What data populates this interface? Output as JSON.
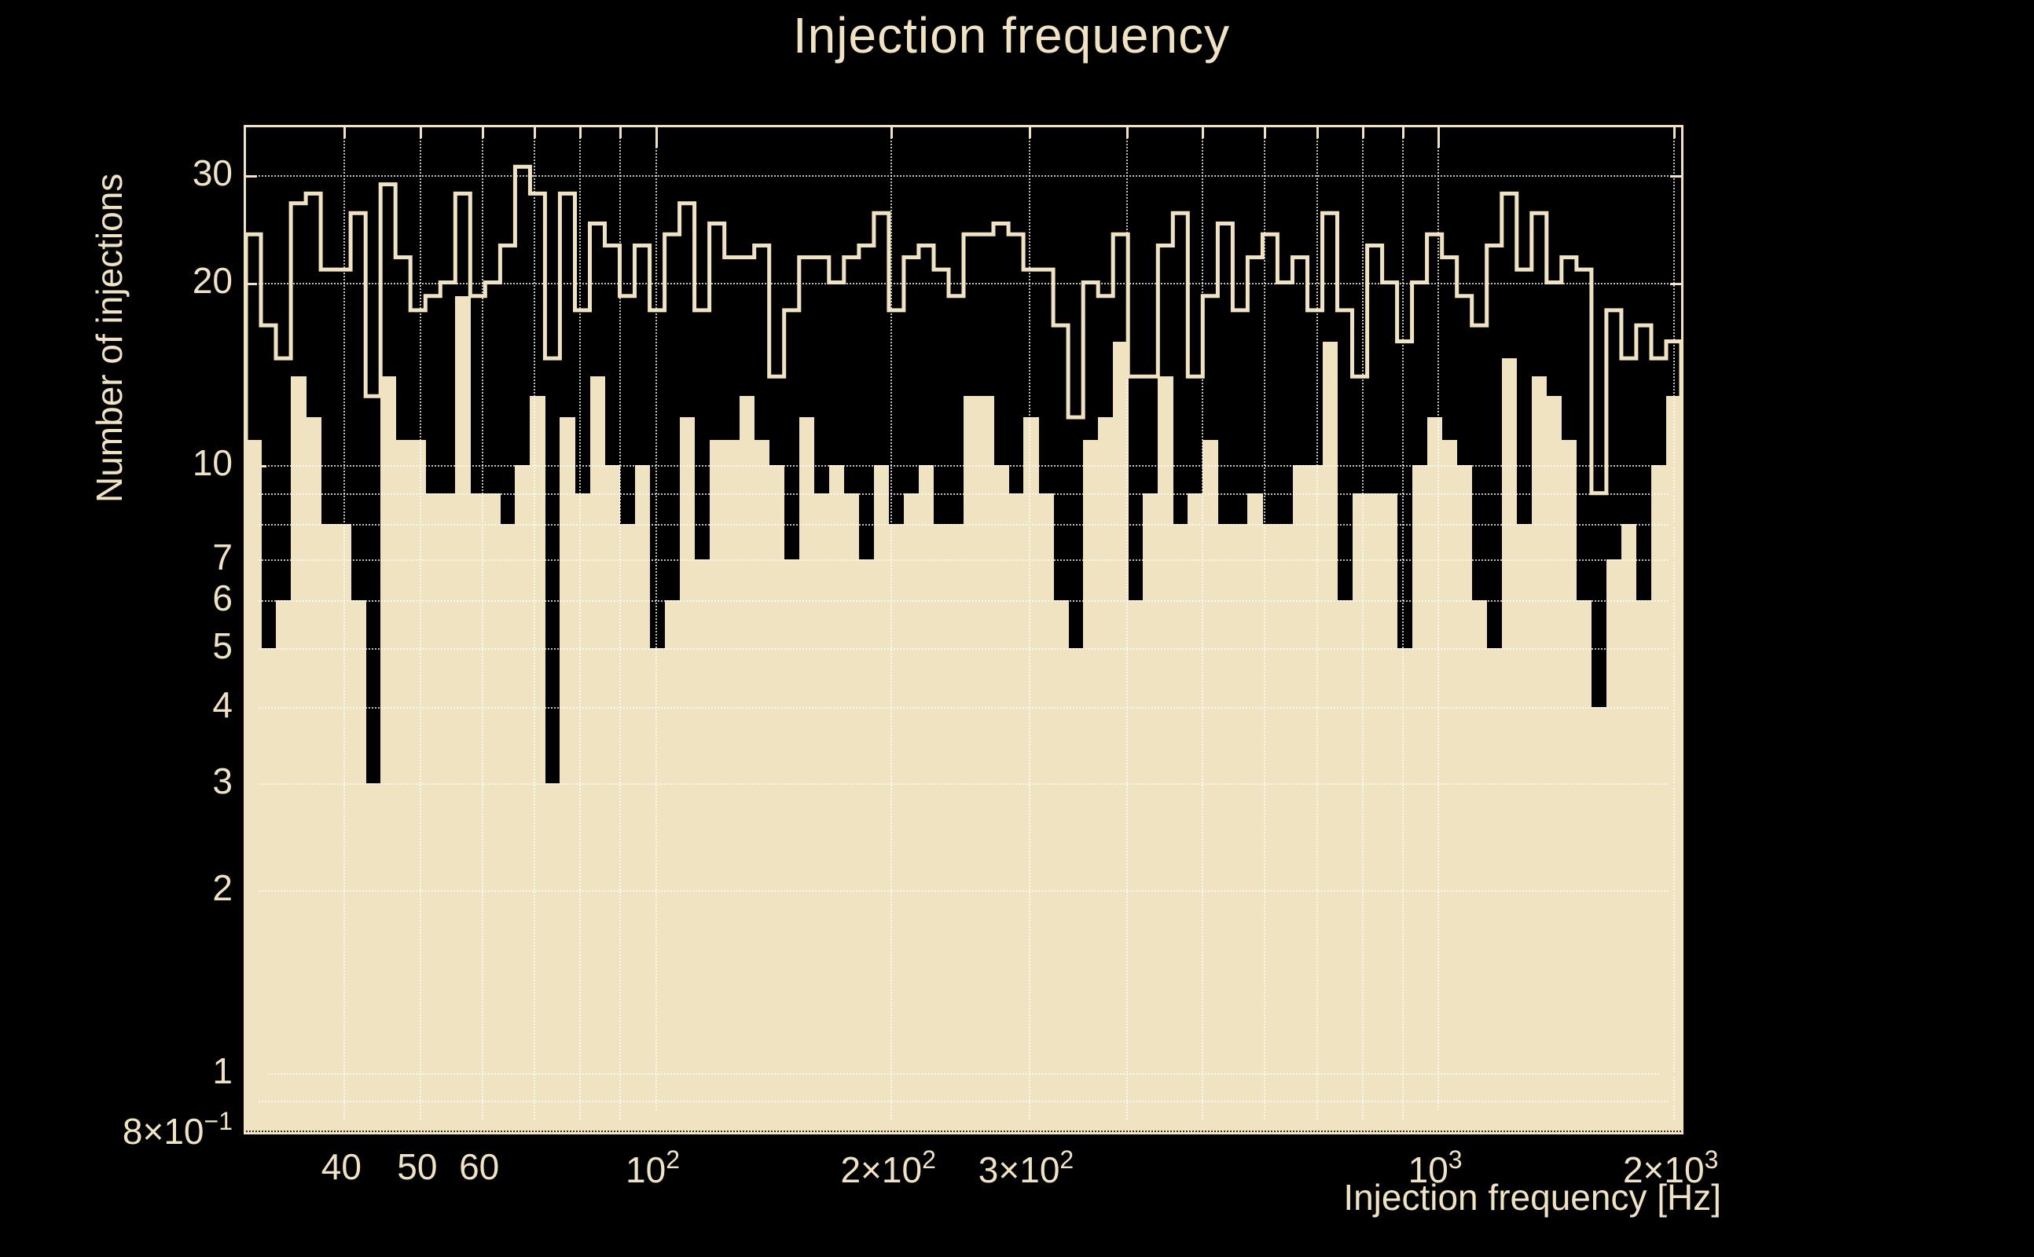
{
  "title": "Injection frequency",
  "axes": {
    "x_title": "Injection frequency [Hz]",
    "y_title": "Number of injections"
  },
  "colors": {
    "background": "#000000",
    "histogram": "#efe3c2",
    "text": "#efe3c2",
    "grid": "rgba(255,255,255,0.75)"
  },
  "chart_data": {
    "type": "bar",
    "variant": "step-histogram",
    "title": "Injection frequency",
    "xlabel": "Injection frequency [Hz]",
    "ylabel": "Number of injections",
    "x_scale": "log",
    "y_scale": "log",
    "x_range_hz": [
      30,
      2048
    ],
    "y_range": [
      0.8,
      36
    ],
    "n_bins": 96,
    "bins_note": "96 logarithmically spaced bins from 30 Hz to 2048 Hz",
    "grid": true,
    "legend_position": "none",
    "series": [
      {
        "name": "injections-outline",
        "style": "step-outline",
        "values": [
          24,
          17,
          15,
          27,
          28,
          21,
          21,
          26,
          13,
          29,
          22,
          18,
          19,
          20,
          28,
          19,
          20,
          23,
          31,
          28,
          15,
          28,
          18,
          25,
          23,
          19,
          23,
          18,
          24,
          27,
          18,
          25,
          22,
          22,
          23,
          14,
          18,
          22,
          22,
          20,
          22,
          23,
          26,
          18,
          22,
          23,
          21,
          19,
          24,
          24,
          25,
          24,
          21,
          21,
          17,
          12,
          20,
          19,
          24,
          14,
          14,
          23,
          26,
          14,
          19,
          25,
          18,
          22,
          24,
          20,
          22,
          18,
          26,
          18,
          14,
          23,
          20,
          16,
          20,
          24,
          22,
          19,
          17,
          23,
          28,
          21,
          26,
          20,
          22,
          21,
          9,
          18,
          15,
          17,
          15,
          16
        ]
      },
      {
        "name": "injections-filled",
        "style": "filled",
        "values": [
          11,
          5,
          6,
          14,
          12,
          8,
          8,
          6,
          3,
          14,
          11,
          11,
          9,
          9,
          19,
          9,
          9,
          8,
          10,
          13,
          3,
          12,
          9,
          14,
          10,
          8,
          10,
          5,
          6,
          12,
          7,
          11,
          11,
          13,
          11,
          10,
          7,
          12,
          9,
          10,
          9,
          7,
          10,
          8,
          9,
          10,
          8,
          8,
          13,
          13,
          10,
          9,
          12,
          9,
          6,
          5,
          11,
          12,
          16,
          6,
          9,
          14,
          8,
          9,
          11,
          8,
          8,
          9,
          8,
          8,
          10,
          10,
          16,
          6,
          9,
          9,
          9,
          5,
          10,
          12,
          11,
          10,
          6,
          5,
          15,
          8,
          14,
          13,
          11,
          6,
          4,
          7,
          8,
          6,
          10,
          13
        ]
      }
    ],
    "x_ticks": [
      {
        "value": 40,
        "pre": "40"
      },
      {
        "value": 50,
        "pre": "50"
      },
      {
        "value": 60,
        "pre": "60"
      },
      {
        "value": 100,
        "base": "10",
        "sup": "2"
      },
      {
        "value": 200,
        "pre": "2×",
        "base": "10",
        "sup": "2"
      },
      {
        "value": 300,
        "pre": "3×",
        "base": "10",
        "sup": "2"
      },
      {
        "value": 1000,
        "base": "10",
        "sup": "3"
      },
      {
        "value": 2000,
        "pre": "2×",
        "base": "10",
        "sup": "3"
      }
    ],
    "y_ticks": [
      {
        "value": 30,
        "pre": "30"
      },
      {
        "value": 20,
        "pre": "20"
      },
      {
        "value": 10,
        "pre": "10"
      },
      {
        "value": 7,
        "pre": "7"
      },
      {
        "value": 6,
        "pre": "6"
      },
      {
        "value": 5,
        "pre": "5"
      },
      {
        "value": 4,
        "pre": "4"
      },
      {
        "value": 3,
        "pre": "3"
      },
      {
        "value": 2,
        "pre": "2"
      },
      {
        "value": 1,
        "pre": "1"
      },
      {
        "value": 0.8,
        "pre": "8×",
        "base": "10",
        "sup": "−1"
      }
    ],
    "grid_x_values": [
      40,
      50,
      60,
      70,
      80,
      90,
      100,
      200,
      300,
      400,
      500,
      600,
      700,
      800,
      900,
      1000,
      2000
    ],
    "grid_y_values": [
      0.9,
      1,
      2,
      3,
      4,
      5,
      6,
      7,
      8,
      9,
      10,
      20,
      30
    ]
  }
}
